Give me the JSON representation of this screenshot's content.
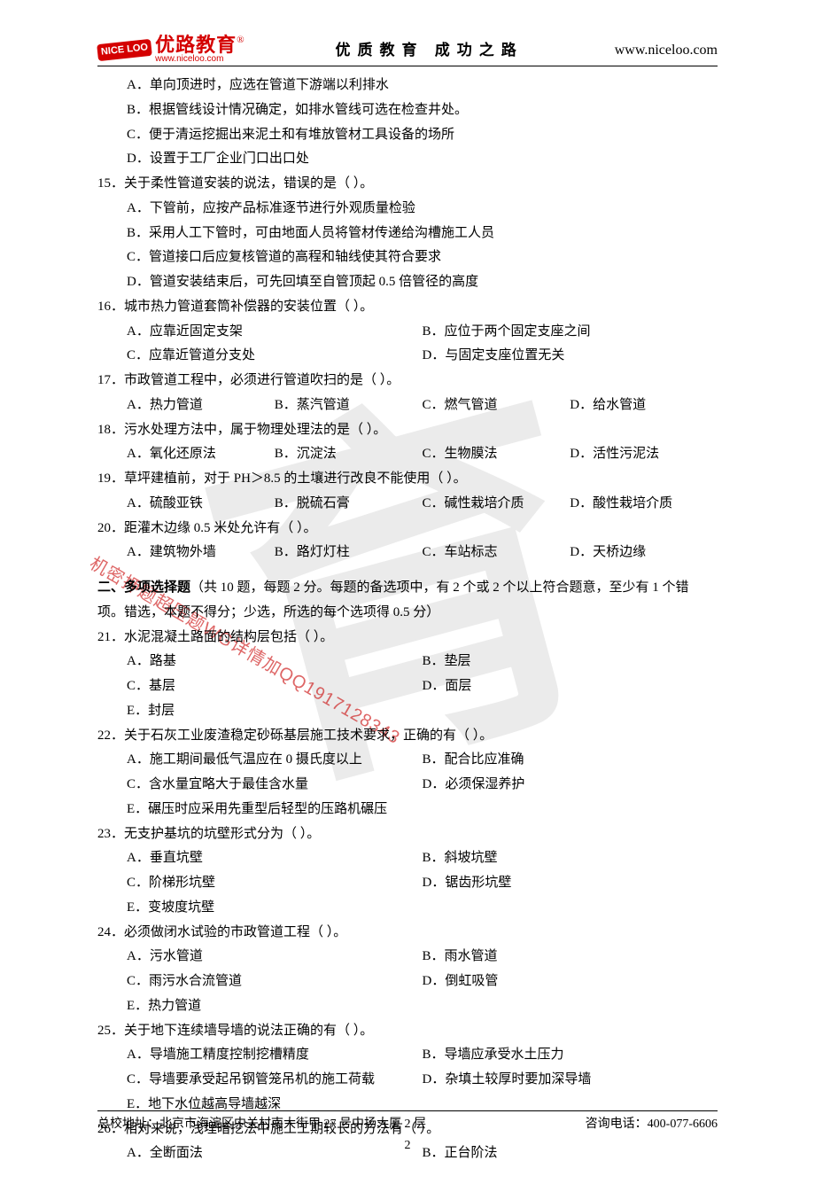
{
  "watermark_char": "育",
  "watermark_diag": "机密押题超压题WG详情加QQ1917128343",
  "header": {
    "logo_badge": "NICE\nLOO",
    "logo_cn": "优路教育",
    "logo_reg": "®",
    "logo_en": "www.niceloo.com",
    "center": "优质教育    成功之路",
    "right": "www.niceloo.com"
  },
  "q14opts": {
    "A": "A．单向顶进时，应选在管道下游端以利排水",
    "B": "B．根据管线设计情况确定，如排水管线可选在检查井处。",
    "C": "C．便于清运挖掘出来泥土和有堆放管材工具设备的场所",
    "D": "D．设置于工厂企业门口出口处"
  },
  "q15": {
    "stem": "15．关于柔性管道安装的说法，错误的是（    ）。",
    "A": "A．下管前，应按产品标准逐节进行外观质量检验",
    "B": "B．采用人工下管时，可由地面人员将管材传递给沟槽施工人员",
    "C": "C．管道接口后应复核管道的高程和轴线使其符合要求",
    "D": "D．管道安装结束后，可先回填至自管顶起 0.5 倍管径的高度"
  },
  "q16": {
    "stem": "16．城市热力管道套筒补偿器的安装位置（    ）。",
    "A": "A．应靠近固定支架",
    "B": "B．应位于两个固定支座之间",
    "C": "C．应靠近管道分支处",
    "D": "D．与固定支座位置无关"
  },
  "q17": {
    "stem": "17．市政管道工程中，必须进行管道吹扫的是（    ）。",
    "A": "A．热力管道",
    "B": "B．蒸汽管道",
    "C": "C．燃气管道",
    "D": "D．给水管道"
  },
  "q18": {
    "stem": "18．污水处理方法中，属于物理处理法的是（    ）。",
    "A": "A．氧化还原法",
    "B": "B．沉淀法",
    "C": "C．生物膜法",
    "D": "D．活性污泥法"
  },
  "q19": {
    "stem": "19．草坪建植前，对于 PH＞8.5 的土壤进行改良不能使用（    ）。",
    "A": "A．硫酸亚铁",
    "B": "B．脱硫石膏",
    "C": "C．碱性栽培介质",
    "D": "D．酸性栽培介质"
  },
  "q20": {
    "stem": "20．距灌木边缘 0.5 米处允许有（    ）。",
    "A": "A．建筑物外墙",
    "B": "B．路灯灯柱",
    "C": "C．车站标志",
    "D": "D．天桥边缘"
  },
  "section2": {
    "title_bold": "二、多项选择题",
    "title_rest": "（共 10 题，每题 2 分。每题的备选项中，有 2 个或 2 个以上符合题意，至少有 1 个错",
    "title_line2": "项。错选，本题不得分；少选，所选的每个选项得 0.5 分）"
  },
  "q21": {
    "stem": "21．水泥混凝土路面的结构层包括（    ）。",
    "A": "A．路基",
    "B": "B．垫层",
    "C": "C．基层",
    "D": "D．面层",
    "E": "E．封层"
  },
  "q22": {
    "stem": "22．关于石灰工业废渣稳定砂砾基层施工技术要求，正确的有（    ）。",
    "A": "A．施工期间最低气温应在 0 摄氏度以上",
    "B": "B．配合比应准确",
    "C": "C．含水量宜略大于最佳含水量",
    "D": "D．必须保湿养护",
    "E": "E．碾压时应采用先重型后轻型的压路机碾压"
  },
  "q23": {
    "stem": "23．无支护基坑的坑壁形式分为（    ）。",
    "A": "A．垂直坑壁",
    "B": "B．斜坡坑壁",
    "C": "C．阶梯形坑壁",
    "D": "D．锯齿形坑壁",
    "E": "E．变坡度坑壁"
  },
  "q24": {
    "stem": "24．必须做闭水试验的市政管道工程（    ）。",
    "A": "A．污水管道",
    "B": "B．雨水管道",
    "C": "C．雨污水合流管道",
    "D": "D．倒虹吸管",
    "E": "E．热力管道"
  },
  "q25": {
    "stem": "25．关于地下连续墙导墙的说法正确的有（    ）。",
    "A": "A．导墙施工精度控制挖槽精度",
    "B": "B．导墙应承受水土压力",
    "C": "C．导墙要承受起吊钢管笼吊机的施工荷载",
    "D": "D．杂填土较厚时要加深导墙",
    "E": "E．地下水位越高导墙越深"
  },
  "q26": {
    "stem": "26．相对来说，浅埋暗挖法中施工工期较长的方法有（    ）。",
    "A": "A．全断面法",
    "B": "B．正台阶法"
  },
  "footer": {
    "address": "总校地址：北京市海淀区中关村南大街甲 27 号中扬大厦 2 层",
    "phone": "咨询电话：400-077-6606",
    "page": "2"
  }
}
